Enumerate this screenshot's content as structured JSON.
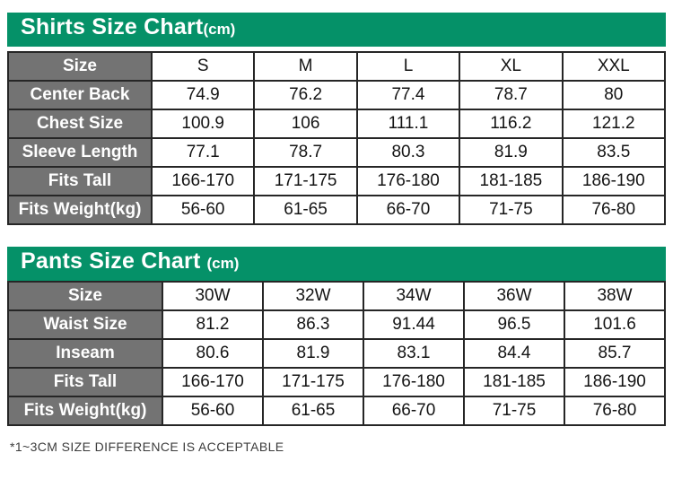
{
  "colors": {
    "title_bar_green": "#059168",
    "label_cell_gray": "#737373",
    "border_dark": "#262626",
    "value_text": "#141414",
    "footer_text": "#3c3c3c"
  },
  "chart_data": [
    {
      "type": "table",
      "title": "Shirts Size Chart",
      "unit_label": "(cm)",
      "columns": [
        "Size",
        "S",
        "M",
        "L",
        "XL",
        "XXL"
      ],
      "rows": [
        [
          "Center Back",
          "74.9",
          "76.2",
          "77.4",
          "78.7",
          "80"
        ],
        [
          "Chest Size",
          "100.9",
          "106",
          "111.1",
          "116.2",
          "121.2"
        ],
        [
          "Sleeve Length",
          "77.1",
          "78.7",
          "80.3",
          "81.9",
          "83.5"
        ],
        [
          "Fits Tall",
          "166-170",
          "171-175",
          "176-180",
          "181-185",
          "186-190"
        ],
        [
          "Fits Weight(kg)",
          "56-60",
          "61-65",
          "66-70",
          "71-75",
          "76-80"
        ]
      ]
    },
    {
      "type": "table",
      "title": "Pants Size Chart",
      "unit_label": "(cm)",
      "columns": [
        "Size",
        "30W",
        "32W",
        "34W",
        "36W",
        "38W"
      ],
      "rows": [
        [
          "Waist Size",
          "81.2",
          "86.3",
          "91.44",
          "96.5",
          "101.6"
        ],
        [
          "Inseam",
          "80.6",
          "81.9",
          "83.1",
          "84.4",
          "85.7"
        ],
        [
          "Fits Tall",
          "166-170",
          "171-175",
          "176-180",
          "181-185",
          "186-190"
        ],
        [
          "Fits Weight(kg)",
          "56-60",
          "61-65",
          "66-70",
          "71-75",
          "76-80"
        ]
      ]
    }
  ],
  "footer": {
    "note": "*1~3CM SIZE DIFFERENCE IS ACCEPTABLE"
  }
}
